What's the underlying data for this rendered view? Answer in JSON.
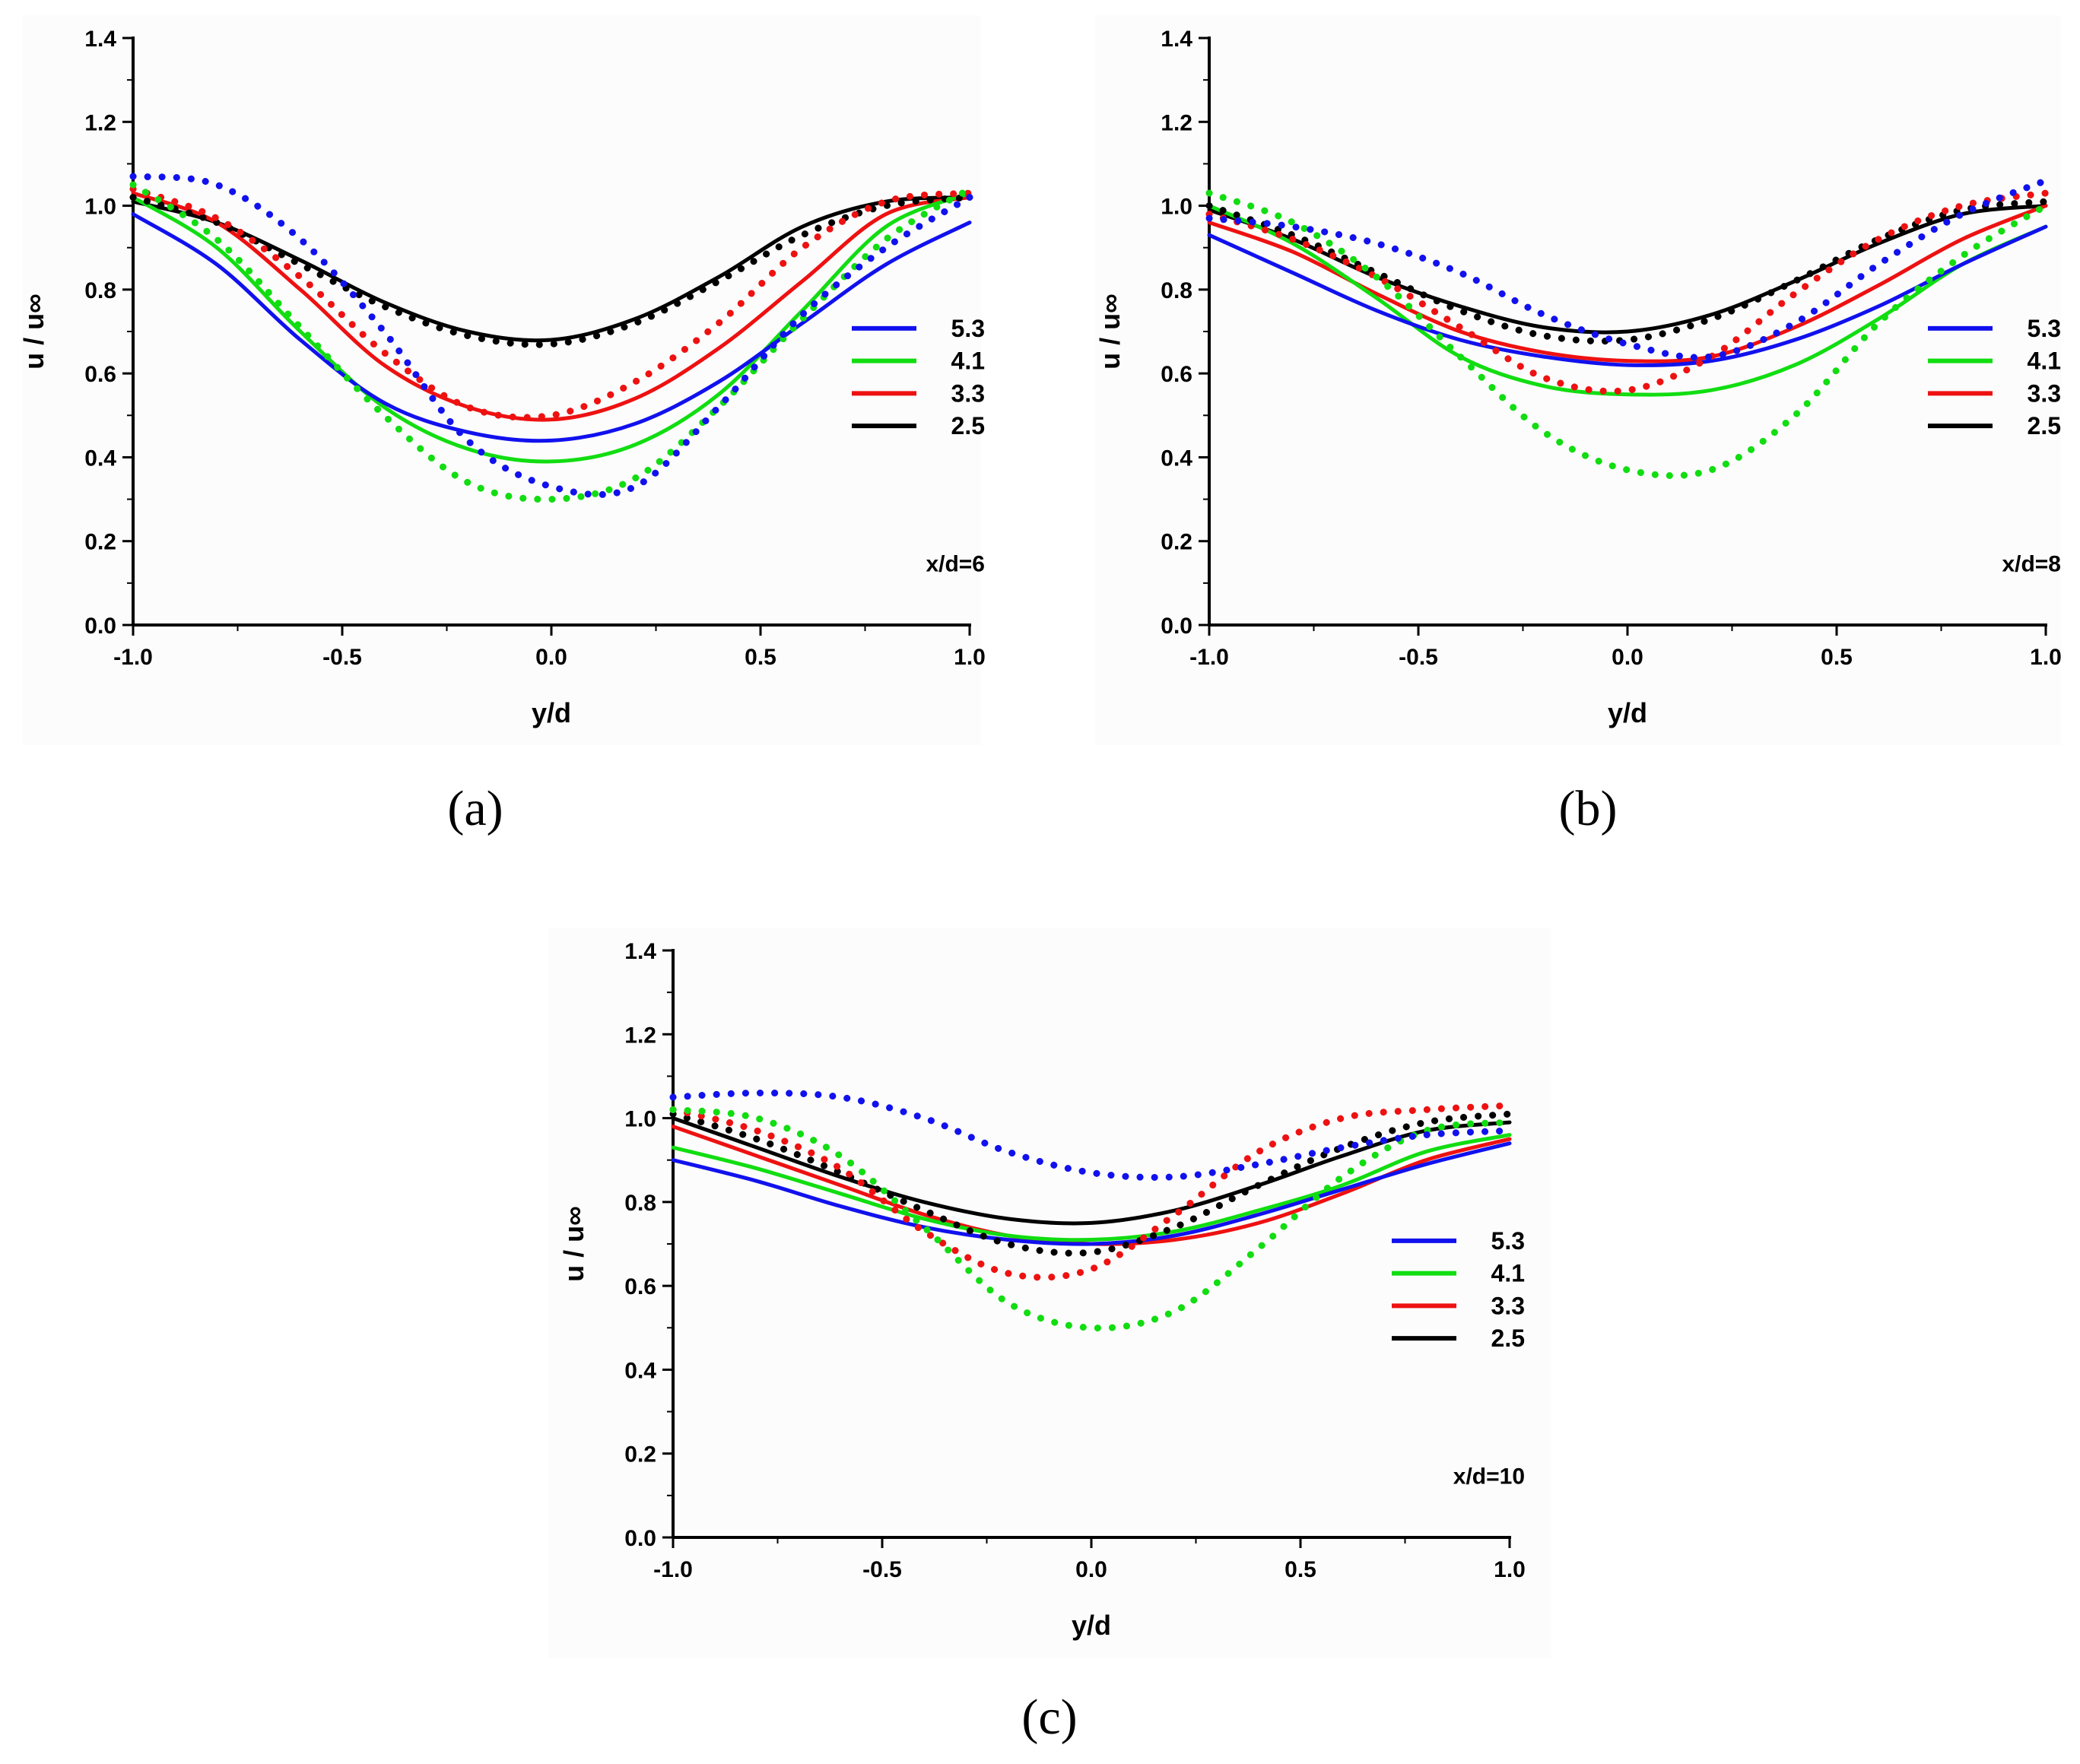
{
  "colors": {
    "2.5": "#000000",
    "3.3": "#ee1111",
    "4.1": "#11dd11",
    "5.3": "#1111ee"
  },
  "chart_data": [
    {
      "type": "line",
      "panel_label": "(a)",
      "xlabel": "y/d",
      "ylabel": "u / u∞",
      "xlim": [
        -1.0,
        1.0
      ],
      "ylim": [
        0.0,
        1.4
      ],
      "xticks": [
        "-1.0",
        "-0.5",
        "0.0",
        "0.5",
        "1.0"
      ],
      "yticks": [
        "0.0",
        "0.2",
        "0.4",
        "0.6",
        "0.8",
        "1.0",
        "1.2",
        "1.4"
      ],
      "annotation": "x/d=6",
      "legend_position": "right",
      "x": [
        -1.0,
        -0.8,
        -0.6,
        -0.4,
        -0.2,
        0.0,
        0.2,
        0.4,
        0.6,
        0.8,
        1.0
      ],
      "series": [
        {
          "name": "2.5",
          "style": "solid",
          "values": [
            1.01,
            0.96,
            0.87,
            0.77,
            0.7,
            0.68,
            0.73,
            0.83,
            0.95,
            1.01,
            1.02
          ]
        },
        {
          "name": "3.3",
          "style": "solid",
          "values": [
            1.03,
            0.96,
            0.8,
            0.62,
            0.52,
            0.49,
            0.54,
            0.66,
            0.82,
            0.98,
            1.02
          ]
        },
        {
          "name": "4.1",
          "style": "solid",
          "values": [
            1.02,
            0.9,
            0.7,
            0.52,
            0.42,
            0.39,
            0.43,
            0.55,
            0.75,
            0.95,
            1.03
          ]
        },
        {
          "name": "5.3",
          "style": "solid",
          "values": [
            0.98,
            0.86,
            0.68,
            0.53,
            0.46,
            0.44,
            0.48,
            0.58,
            0.72,
            0.86,
            0.96
          ]
        },
        {
          "name": "2.5",
          "style": "dotted",
          "values": [
            1.02,
            0.96,
            0.86,
            0.76,
            0.69,
            0.67,
            0.72,
            0.82,
            0.93,
            1.0,
            1.02
          ]
        },
        {
          "name": "3.3",
          "style": "dotted",
          "values": [
            1.04,
            0.97,
            0.83,
            0.65,
            0.52,
            0.5,
            0.58,
            0.72,
            0.9,
            1.01,
            1.03
          ]
        },
        {
          "name": "4.1",
          "style": "dotted",
          "values": [
            1.05,
            0.92,
            0.71,
            0.5,
            0.34,
            0.3,
            0.35,
            0.52,
            0.73,
            0.92,
            1.04
          ]
        },
        {
          "name": "5.3",
          "style": "dotted",
          "values": [
            1.07,
            1.05,
            0.92,
            0.7,
            0.44,
            0.33,
            0.33,
            0.52,
            0.74,
            0.9,
            1.02
          ]
        }
      ]
    },
    {
      "type": "line",
      "panel_label": "(b)",
      "xlabel": "y/d",
      "ylabel": "u / u∞",
      "xlim": [
        -1.0,
        1.0
      ],
      "ylim": [
        0.0,
        1.4
      ],
      "xticks": [
        "-1.0",
        "-0.5",
        "0.0",
        "0.5",
        "1.0"
      ],
      "yticks": [
        "0.0",
        "0.2",
        "0.4",
        "0.6",
        "0.8",
        "1.0",
        "1.2",
        "1.4"
      ],
      "annotation": "x/d=8",
      "legend_position": "right",
      "x": [
        -1.0,
        -0.8,
        -0.6,
        -0.4,
        -0.2,
        0.0,
        0.2,
        0.4,
        0.6,
        0.8,
        1.0
      ],
      "series": [
        {
          "name": "2.5",
          "style": "solid",
          "values": [
            0.99,
            0.92,
            0.83,
            0.76,
            0.71,
            0.7,
            0.74,
            0.82,
            0.91,
            0.98,
            1.0
          ]
        },
        {
          "name": "3.3",
          "style": "solid",
          "values": [
            0.96,
            0.89,
            0.79,
            0.7,
            0.65,
            0.63,
            0.64,
            0.71,
            0.81,
            0.92,
            1.0
          ]
        },
        {
          "name": "4.1",
          "style": "solid",
          "values": [
            1.0,
            0.91,
            0.78,
            0.64,
            0.57,
            0.55,
            0.56,
            0.62,
            0.73,
            0.86,
            0.95
          ]
        },
        {
          "name": "5.3",
          "style": "solid",
          "values": [
            0.93,
            0.84,
            0.75,
            0.68,
            0.64,
            0.62,
            0.63,
            0.68,
            0.76,
            0.86,
            0.95
          ]
        },
        {
          "name": "2.5",
          "style": "dotted",
          "values": [
            1.0,
            0.93,
            0.84,
            0.75,
            0.69,
            0.68,
            0.73,
            0.82,
            0.92,
            0.99,
            1.01
          ]
        },
        {
          "name": "3.3",
          "style": "dotted",
          "values": [
            0.98,
            0.92,
            0.83,
            0.71,
            0.59,
            0.56,
            0.64,
            0.79,
            0.92,
            1.0,
            1.03
          ]
        },
        {
          "name": "4.1",
          "style": "dotted",
          "values": [
            1.03,
            0.96,
            0.83,
            0.64,
            0.46,
            0.37,
            0.37,
            0.5,
            0.72,
            0.88,
            1.0
          ]
        },
        {
          "name": "5.3",
          "style": "dotted",
          "values": [
            0.97,
            0.95,
            0.91,
            0.84,
            0.74,
            0.67,
            0.64,
            0.72,
            0.86,
            0.98,
            1.06
          ]
        }
      ]
    },
    {
      "type": "line",
      "panel_label": "(c)",
      "xlabel": "y/d",
      "ylabel": "u / u∞",
      "xlim": [
        -1.0,
        1.0
      ],
      "ylim": [
        0.0,
        1.4
      ],
      "xticks": [
        "-1.0",
        "-0.5",
        "0.0",
        "0.5",
        "1.0"
      ],
      "yticks": [
        "0.0",
        "0.2",
        "0.4",
        "0.6",
        "0.8",
        "1.0",
        "1.2",
        "1.4"
      ],
      "annotation": "x/d=10",
      "legend_position": "right",
      "x": [
        -1.0,
        -0.8,
        -0.6,
        -0.4,
        -0.2,
        0.0,
        0.2,
        0.4,
        0.6,
        0.8,
        1.0
      ],
      "series": [
        {
          "name": "2.5",
          "style": "solid",
          "values": [
            1.0,
            0.93,
            0.86,
            0.8,
            0.76,
            0.75,
            0.78,
            0.84,
            0.91,
            0.97,
            0.99
          ]
        },
        {
          "name": "3.3",
          "style": "solid",
          "values": [
            0.98,
            0.91,
            0.84,
            0.77,
            0.72,
            0.7,
            0.71,
            0.75,
            0.82,
            0.9,
            0.95
          ]
        },
        {
          "name": "4.1",
          "style": "solid",
          "values": [
            0.93,
            0.88,
            0.82,
            0.76,
            0.72,
            0.71,
            0.73,
            0.78,
            0.84,
            0.92,
            0.96
          ]
        },
        {
          "name": "5.3",
          "style": "solid",
          "values": [
            0.9,
            0.85,
            0.79,
            0.74,
            0.71,
            0.7,
            0.72,
            0.77,
            0.83,
            0.89,
            0.94
          ]
        },
        {
          "name": "2.5",
          "style": "dotted",
          "values": [
            1.01,
            0.95,
            0.87,
            0.78,
            0.7,
            0.68,
            0.74,
            0.84,
            0.93,
            0.99,
            1.01
          ]
        },
        {
          "name": "3.3",
          "style": "dotted",
          "values": [
            1.02,
            0.97,
            0.88,
            0.73,
            0.63,
            0.64,
            0.77,
            0.92,
            1.0,
            1.02,
            1.03
          ]
        },
        {
          "name": "4.1",
          "style": "dotted",
          "values": [
            1.02,
            1.0,
            0.91,
            0.74,
            0.56,
            0.5,
            0.54,
            0.69,
            0.86,
            0.97,
            0.99
          ]
        },
        {
          "name": "5.3",
          "style": "dotted",
          "values": [
            1.05,
            1.06,
            1.05,
            1.0,
            0.92,
            0.87,
            0.86,
            0.89,
            0.93,
            0.96,
            0.97
          ]
        }
      ]
    }
  ]
}
